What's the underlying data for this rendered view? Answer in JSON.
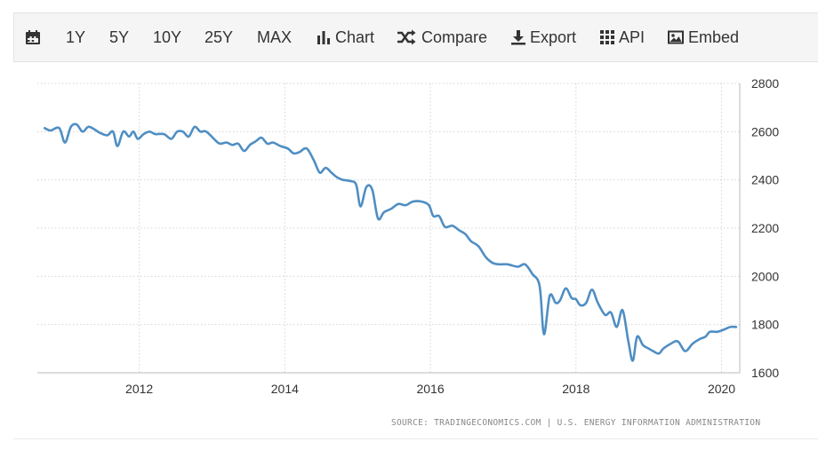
{
  "toolbar": {
    "calendar_icon": "calendar-icon",
    "ranges": [
      "1Y",
      "5Y",
      "10Y",
      "25Y",
      "MAX"
    ],
    "chart_label": "Chart",
    "compare_label": "Compare",
    "export_label": "Export",
    "api_label": "API",
    "embed_label": "Embed"
  },
  "chart_data": {
    "type": "line",
    "title": "",
    "xlabel": "",
    "ylabel": "",
    "xlim": [
      2010.6,
      2020.25
    ],
    "ylim": [
      1600,
      2800
    ],
    "x_ticks": [
      2012,
      2014,
      2016,
      2018,
      2020
    ],
    "y_ticks": [
      1600,
      1800,
      2000,
      2200,
      2400,
      2600,
      2800
    ],
    "grid": true,
    "legend": "none",
    "line_color": "#4f8ec3",
    "series": [
      {
        "x": [
          2010.7,
          2010.78,
          2010.9,
          2010.98,
          2011.06,
          2011.14,
          2011.22,
          2011.3,
          2011.38,
          2011.46,
          2011.56,
          2011.64,
          2011.7,
          2011.78,
          2011.86,
          2011.92,
          2011.98,
          2012.06,
          2012.14,
          2012.22,
          2012.34,
          2012.44,
          2012.52,
          2012.6,
          2012.68,
          2012.76,
          2012.84,
          2012.92,
          2013.06,
          2013.12,
          2013.2,
          2013.28,
          2013.36,
          2013.44,
          2013.52,
          2013.6,
          2013.68,
          2013.76,
          2013.84,
          2013.94,
          2014.04,
          2014.12,
          2014.2,
          2014.3,
          2014.4,
          2014.48,
          2014.56,
          2014.64,
          2014.72,
          2014.8,
          2014.9,
          2014.98,
          2015.04,
          2015.12,
          2015.2,
          2015.28,
          2015.36,
          2015.46,
          2015.56,
          2015.66,
          2015.76,
          2015.88,
          2015.98,
          2016.04,
          2016.12,
          2016.2,
          2016.3,
          2016.4,
          2016.48,
          2016.56,
          2016.66,
          2016.76,
          2016.86,
          2016.96,
          2017.06,
          2017.2,
          2017.3,
          2017.4,
          2017.5,
          2017.56,
          2017.64,
          2017.72,
          2017.78,
          2017.86,
          2017.94,
          2018.0,
          2018.06,
          2018.14,
          2018.22,
          2018.3,
          2018.4,
          2018.48,
          2018.56,
          2018.64,
          2018.72,
          2018.78,
          2018.84,
          2018.92,
          2019.0,
          2019.06,
          2019.14,
          2019.2,
          2019.3,
          2019.4,
          2019.5,
          2019.6,
          2019.7,
          2019.78,
          2019.84,
          2019.94,
          2020.04,
          2020.12,
          2020.2
        ],
        "values": [
          2615,
          2605,
          2615,
          2555,
          2620,
          2630,
          2600,
          2620,
          2610,
          2595,
          2585,
          2600,
          2540,
          2600,
          2580,
          2600,
          2570,
          2590,
          2600,
          2590,
          2590,
          2570,
          2600,
          2600,
          2580,
          2620,
          2600,
          2600,
          2560,
          2550,
          2555,
          2545,
          2550,
          2520,
          2545,
          2560,
          2575,
          2550,
          2555,
          2540,
          2530,
          2510,
          2515,
          2530,
          2480,
          2430,
          2450,
          2430,
          2410,
          2400,
          2395,
          2380,
          2290,
          2370,
          2360,
          2240,
          2265,
          2280,
          2300,
          2295,
          2310,
          2310,
          2295,
          2250,
          2250,
          2205,
          2210,
          2190,
          2175,
          2145,
          2125,
          2080,
          2055,
          2050,
          2050,
          2040,
          2050,
          2010,
          1960,
          1760,
          1920,
          1890,
          1900,
          1950,
          1910,
          1905,
          1880,
          1890,
          1945,
          1890,
          1840,
          1850,
          1790,
          1860,
          1730,
          1650,
          1750,
          1715,
          1700,
          1690,
          1680,
          1700,
          1720,
          1730,
          1690,
          1720,
          1740,
          1750,
          1770,
          1770,
          1780,
          1790,
          1790
        ]
      }
    ]
  },
  "source_text": "SOURCE: TRADINGECONOMICS.COM  |  U.S. ENERGY INFORMATION ADMINISTRATION"
}
